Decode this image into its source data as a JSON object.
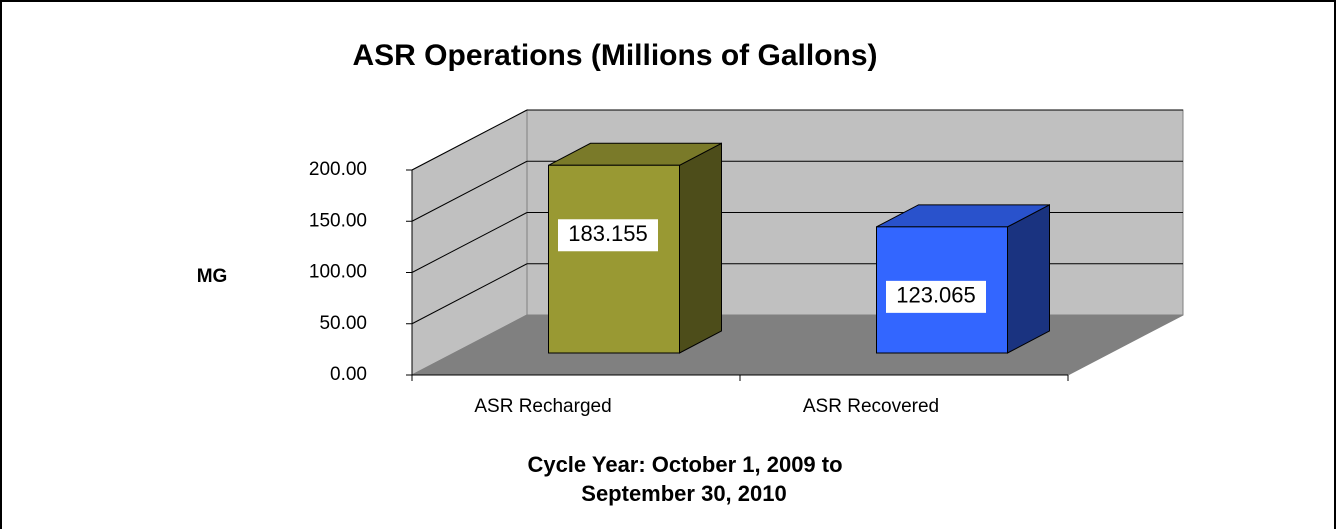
{
  "chart_data": {
    "type": "bar3d",
    "title": "ASR Operations (Millions of Gallons)",
    "ylabel": "MG",
    "xlabel": [
      "Cycle Year: October 1, 2009 to",
      "September 30, 2010"
    ],
    "categories": [
      "ASR Recharged",
      "ASR Recovered"
    ],
    "values": [
      183.155,
      123.065
    ],
    "colors": [
      "#999933",
      "#3366ff"
    ],
    "ylim": [
      0,
      200
    ],
    "yticks": [
      {
        "value": 0,
        "label": "0.00"
      },
      {
        "value": 50,
        "label": "50.00"
      },
      {
        "value": 100,
        "label": "100.00"
      },
      {
        "value": 150,
        "label": "150.00"
      },
      {
        "value": 200,
        "label": "200.00"
      }
    ],
    "grid": true
  }
}
